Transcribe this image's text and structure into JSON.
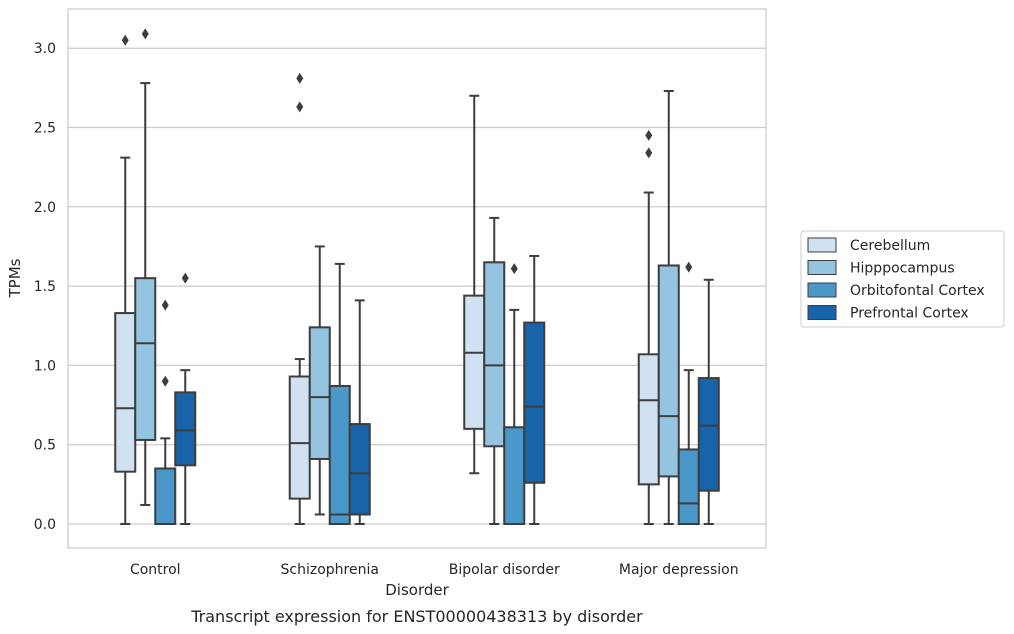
{
  "caption": "Transcript expression for ENST00000438313 by disorder",
  "chart_data": {
    "type": "box",
    "title": "",
    "xlabel": "Disorder",
    "ylabel": "TPMs",
    "ylim": [
      -0.15,
      3.25
    ],
    "yticks": [
      0.0,
      0.5,
      1.0,
      1.5,
      2.0,
      2.5,
      3.0
    ],
    "ytick_labels": [
      "0.0",
      "0.5",
      "1.0",
      "1.5",
      "2.0",
      "2.5",
      "3.0"
    ],
    "grid": "horizontal",
    "legend_position": "right",
    "categories": [
      "Control",
      "Schizophrenia",
      "Bipolar disorder",
      "Major depression"
    ],
    "series": [
      {
        "name": "Cerebellum",
        "color": "#d0e1f2",
        "boxes": [
          {
            "whisker_low": 0.0,
            "q1": 0.33,
            "median": 0.73,
            "q3": 1.33,
            "whisker_high": 2.31,
            "outliers": [
              3.05
            ]
          },
          {
            "whisker_low": 0.0,
            "q1": 0.16,
            "median": 0.51,
            "q3": 0.93,
            "whisker_high": 1.04,
            "outliers": [
              2.81,
              2.63
            ]
          },
          {
            "whisker_low": 0.32,
            "q1": 0.6,
            "median": 1.08,
            "q3": 1.44,
            "whisker_high": 2.7,
            "outliers": []
          },
          {
            "whisker_low": 0.0,
            "q1": 0.25,
            "median": 0.78,
            "q3": 1.07,
            "whisker_high": 2.09,
            "outliers": [
              2.45,
              2.34
            ]
          }
        ]
      },
      {
        "name": "Hipppocampus",
        "color": "#94c4df",
        "boxes": [
          {
            "whisker_low": 0.12,
            "q1": 0.53,
            "median": 1.14,
            "q3": 1.55,
            "whisker_high": 2.78,
            "outliers": [
              3.09
            ]
          },
          {
            "whisker_low": 0.06,
            "q1": 0.41,
            "median": 0.8,
            "q3": 1.24,
            "whisker_high": 1.75,
            "outliers": []
          },
          {
            "whisker_low": 0.0,
            "q1": 0.49,
            "median": 1.0,
            "q3": 1.65,
            "whisker_high": 1.93,
            "outliers": []
          },
          {
            "whisker_low": 0.0,
            "q1": 0.3,
            "median": 0.68,
            "q3": 1.63,
            "whisker_high": 2.73,
            "outliers": []
          }
        ]
      },
      {
        "name": "Orbitofontal Cortex",
        "color": "#4a98c9",
        "boxes": [
          {
            "whisker_low": 0.0,
            "q1": 0.0,
            "median": 0.0,
            "q3": 0.35,
            "whisker_high": 0.54,
            "outliers": [
              1.38,
              0.9
            ]
          },
          {
            "whisker_low": 0.0,
            "q1": 0.0,
            "median": 0.06,
            "q3": 0.87,
            "whisker_high": 1.64,
            "outliers": []
          },
          {
            "whisker_low": 0.0,
            "q1": 0.0,
            "median": 0.0,
            "q3": 0.61,
            "whisker_high": 1.35,
            "outliers": [
              1.61
            ]
          },
          {
            "whisker_low": 0.0,
            "q1": 0.0,
            "median": 0.13,
            "q3": 0.47,
            "whisker_high": 0.97,
            "outliers": [
              1.62
            ]
          }
        ]
      },
      {
        "name": "Prefrontal Cortex",
        "color": "#1764ab",
        "boxes": [
          {
            "whisker_low": 0.0,
            "q1": 0.37,
            "median": 0.59,
            "q3": 0.83,
            "whisker_high": 0.97,
            "outliers": [
              1.55
            ]
          },
          {
            "whisker_low": 0.0,
            "q1": 0.06,
            "median": 0.32,
            "q3": 0.63,
            "whisker_high": 1.41,
            "outliers": []
          },
          {
            "whisker_low": 0.0,
            "q1": 0.26,
            "median": 0.74,
            "q3": 1.27,
            "whisker_high": 1.69,
            "outliers": []
          },
          {
            "whisker_low": 0.0,
            "q1": 0.21,
            "median": 0.62,
            "q3": 0.92,
            "whisker_high": 1.54,
            "outliers": []
          }
        ]
      }
    ]
  }
}
